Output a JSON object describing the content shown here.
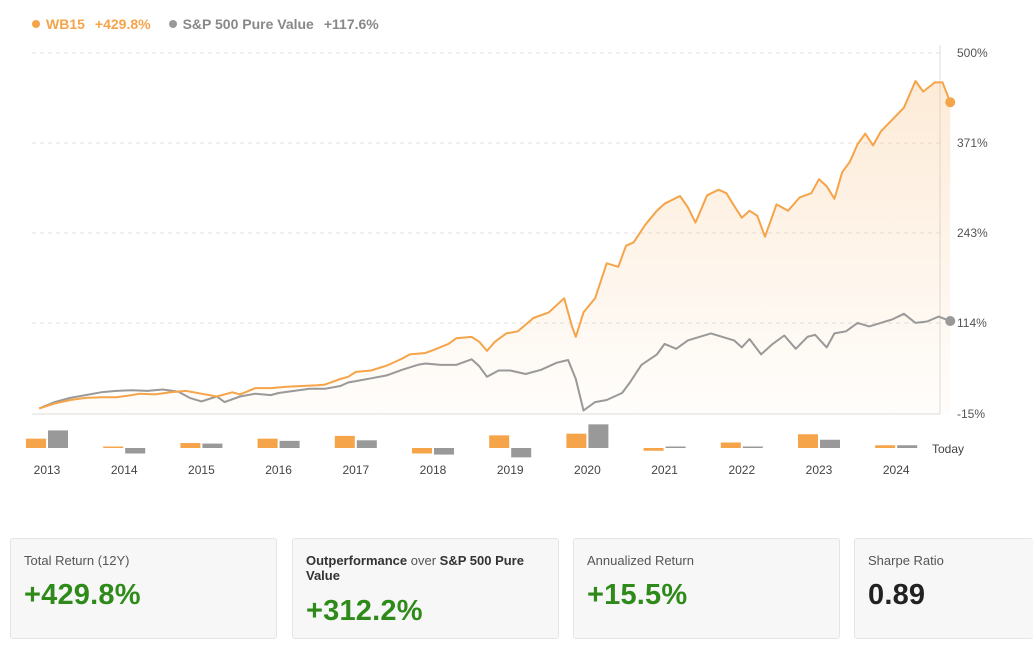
{
  "legend": {
    "primary_name": "WB15",
    "primary_value": "+429.8%",
    "benchmark_name": "S&P 500 Pure Value",
    "benchmark_value": "+117.6%"
  },
  "colors": {
    "primary": "#f5a44a",
    "benchmark": "#999999",
    "positive": "#2e8b1a"
  },
  "chart_data": {
    "type": "line",
    "y_tick_labels": [
      "500%",
      "371%",
      "243%",
      "114%",
      "-15%"
    ],
    "ylim": [
      -15,
      500
    ],
    "x_tick_labels": [
      "2013",
      "2014",
      "2015",
      "2016",
      "2017",
      "2018",
      "2019",
      "2020",
      "2021",
      "2022",
      "2023",
      "2024"
    ],
    "x_end_label": "Today",
    "series": [
      {
        "name": "WB15",
        "end_value": 429.8,
        "points": [
          [
            2012.9,
            -7
          ],
          [
            2013.1,
            0
          ],
          [
            2013.3,
            5
          ],
          [
            2013.5,
            8
          ],
          [
            2013.7,
            9
          ],
          [
            2013.9,
            9
          ],
          [
            2014.1,
            12
          ],
          [
            2014.2,
            14
          ],
          [
            2014.4,
            13
          ],
          [
            2014.6,
            16
          ],
          [
            2014.8,
            18
          ],
          [
            2015.0,
            14
          ],
          [
            2015.2,
            10
          ],
          [
            2015.4,
            16
          ],
          [
            2015.5,
            13
          ],
          [
            2015.7,
            22
          ],
          [
            2015.9,
            22
          ],
          [
            2016.1,
            24
          ],
          [
            2016.3,
            25
          ],
          [
            2016.5,
            26
          ],
          [
            2016.6,
            27
          ],
          [
            2016.8,
            35
          ],
          [
            2016.9,
            38
          ],
          [
            2017.0,
            45
          ],
          [
            2017.2,
            47
          ],
          [
            2017.4,
            54
          ],
          [
            2017.6,
            64
          ],
          [
            2017.7,
            70
          ],
          [
            2017.9,
            72
          ],
          [
            2018.0,
            76
          ],
          [
            2018.2,
            85
          ],
          [
            2018.3,
            93
          ],
          [
            2018.5,
            95
          ],
          [
            2018.6,
            88
          ],
          [
            2018.7,
            75
          ],
          [
            2018.8,
            88
          ],
          [
            2018.95,
            100
          ],
          [
            2019.1,
            103
          ],
          [
            2019.3,
            122
          ],
          [
            2019.5,
            130
          ],
          [
            2019.6,
            140
          ],
          [
            2019.7,
            150
          ],
          [
            2019.8,
            110
          ],
          [
            2019.85,
            95
          ],
          [
            2019.95,
            130
          ],
          [
            2020.1,
            150
          ],
          [
            2020.25,
            200
          ],
          [
            2020.4,
            195
          ],
          [
            2020.5,
            225
          ],
          [
            2020.6,
            230
          ],
          [
            2020.75,
            255
          ],
          [
            2020.9,
            275
          ],
          [
            2021.0,
            285
          ],
          [
            2021.2,
            296
          ],
          [
            2021.3,
            280
          ],
          [
            2021.4,
            258
          ],
          [
            2021.55,
            297
          ],
          [
            2021.7,
            305
          ],
          [
            2021.8,
            300
          ],
          [
            2021.9,
            282
          ],
          [
            2022.0,
            265
          ],
          [
            2022.1,
            275
          ],
          [
            2022.2,
            268
          ],
          [
            2022.3,
            238
          ],
          [
            2022.45,
            284
          ],
          [
            2022.6,
            275
          ],
          [
            2022.75,
            294
          ],
          [
            2022.9,
            300
          ],
          [
            2023.0,
            320
          ],
          [
            2023.1,
            310
          ],
          [
            2023.2,
            292
          ],
          [
            2023.3,
            330
          ],
          [
            2023.4,
            345
          ],
          [
            2023.5,
            370
          ],
          [
            2023.6,
            385
          ],
          [
            2023.7,
            368
          ],
          [
            2023.8,
            388
          ],
          [
            2023.95,
            405
          ],
          [
            2024.1,
            422
          ],
          [
            2024.25,
            460
          ],
          [
            2024.35,
            445
          ],
          [
            2024.5,
            458
          ],
          [
            2024.6,
            458
          ],
          [
            2024.7,
            429.8
          ]
        ]
      },
      {
        "name": "S&P 500 Pure Value",
        "end_value": 117.6,
        "points": [
          [
            2012.9,
            -7
          ],
          [
            2013.1,
            2
          ],
          [
            2013.3,
            8
          ],
          [
            2013.5,
            12
          ],
          [
            2013.7,
            16
          ],
          [
            2013.9,
            18
          ],
          [
            2014.1,
            19
          ],
          [
            2014.3,
            18
          ],
          [
            2014.5,
            20
          ],
          [
            2014.7,
            17
          ],
          [
            2014.85,
            8
          ],
          [
            2015.0,
            3
          ],
          [
            2015.2,
            10
          ],
          [
            2015.3,
            2
          ],
          [
            2015.5,
            10
          ],
          [
            2015.7,
            14
          ],
          [
            2015.9,
            12
          ],
          [
            2016.0,
            15
          ],
          [
            2016.2,
            18
          ],
          [
            2016.4,
            21
          ],
          [
            2016.6,
            21
          ],
          [
            2016.8,
            25
          ],
          [
            2016.9,
            30
          ],
          [
            2017.0,
            32
          ],
          [
            2017.2,
            36
          ],
          [
            2017.4,
            40
          ],
          [
            2017.6,
            48
          ],
          [
            2017.8,
            55
          ],
          [
            2017.9,
            57
          ],
          [
            2018.1,
            55
          ],
          [
            2018.3,
            55
          ],
          [
            2018.5,
            63
          ],
          [
            2018.6,
            53
          ],
          [
            2018.7,
            38
          ],
          [
            2018.85,
            47
          ],
          [
            2019.0,
            47
          ],
          [
            2019.2,
            42
          ],
          [
            2019.4,
            48
          ],
          [
            2019.6,
            58
          ],
          [
            2019.75,
            62
          ],
          [
            2019.85,
            35
          ],
          [
            2019.95,
            -10
          ],
          [
            2020.1,
            2
          ],
          [
            2020.25,
            5
          ],
          [
            2020.45,
            15
          ],
          [
            2020.55,
            30
          ],
          [
            2020.7,
            55
          ],
          [
            2020.9,
            70
          ],
          [
            2021.0,
            85
          ],
          [
            2021.15,
            78
          ],
          [
            2021.3,
            90
          ],
          [
            2021.45,
            95
          ],
          [
            2021.6,
            100
          ],
          [
            2021.75,
            95
          ],
          [
            2021.9,
            90
          ],
          [
            2022.0,
            80
          ],
          [
            2022.1,
            92
          ],
          [
            2022.25,
            70
          ],
          [
            2022.4,
            85
          ],
          [
            2022.55,
            97
          ],
          [
            2022.7,
            78
          ],
          [
            2022.85,
            95
          ],
          [
            2022.95,
            98
          ],
          [
            2023.1,
            80
          ],
          [
            2023.2,
            100
          ],
          [
            2023.35,
            103
          ],
          [
            2023.5,
            115
          ],
          [
            2023.65,
            110
          ],
          [
            2023.8,
            115
          ],
          [
            2023.95,
            120
          ],
          [
            2024.1,
            128
          ],
          [
            2024.25,
            115
          ],
          [
            2024.4,
            117
          ],
          [
            2024.55,
            124
          ],
          [
            2024.7,
            117.6
          ]
        ]
      }
    ],
    "annual_returns": {
      "years": [
        "2013",
        "2014",
        "2015",
        "2016",
        "2017",
        "2018",
        "2019",
        "2020",
        "2021",
        "2022",
        "2023",
        "2024"
      ],
      "primary": [
        17,
        1,
        9,
        17,
        22,
        -10,
        23,
        26,
        -5,
        10,
        25,
        5
      ],
      "benchmark": [
        32,
        -10,
        8,
        13,
        14,
        -12,
        -17,
        43,
        2,
        0,
        15,
        5
      ]
    },
    "grid": true,
    "legend_position": "top-left"
  },
  "stats": [
    {
      "label_plain": "Total Return (12Y)",
      "label_bold": "",
      "label_suffix": "",
      "value": "+429.8%",
      "tone": "pos"
    },
    {
      "label_plain": "",
      "label_bold": "Outperformance",
      "label_suffix": " over ",
      "label_bold2": "S&P 500 Pure Value",
      "value": "+312.2%",
      "tone": "pos"
    },
    {
      "label_plain": "Annualized Return",
      "label_bold": "",
      "label_suffix": "",
      "value": "+15.5%",
      "tone": "pos"
    },
    {
      "label_plain": "Sharpe Ratio",
      "label_bold": "",
      "label_suffix": "",
      "value": "0.89",
      "tone": "neu"
    }
  ]
}
